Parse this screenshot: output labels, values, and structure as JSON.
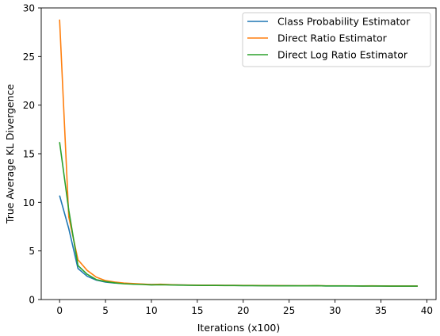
{
  "chart_data": {
    "type": "line",
    "title": "",
    "xlabel": "Iterations (x100)",
    "ylabel": "True Average KL Divergence",
    "xlim": [
      -2,
      41
    ],
    "ylim": [
      0,
      30
    ],
    "xticks": [
      0,
      5,
      10,
      15,
      20,
      25,
      30,
      35,
      40
    ],
    "yticks": [
      0,
      5,
      10,
      15,
      20,
      25,
      30
    ],
    "grid": false,
    "legend_position": "top-right",
    "x": [
      0,
      1,
      2,
      3,
      4,
      5,
      6,
      7,
      8,
      9,
      10,
      11,
      12,
      13,
      14,
      15,
      16,
      17,
      18,
      19,
      20,
      21,
      22,
      23,
      24,
      25,
      26,
      27,
      28,
      29,
      30,
      31,
      32,
      33,
      34,
      35,
      36,
      37,
      38,
      39
    ],
    "series": [
      {
        "name": "Class Probability Estimator",
        "color": "#1f77b4",
        "values": [
          10.7,
          7.3,
          3.2,
          2.4,
          2.0,
          1.8,
          1.7,
          1.65,
          1.6,
          1.58,
          1.55,
          1.55,
          1.52,
          1.5,
          1.48,
          1.47,
          1.46,
          1.46,
          1.45,
          1.45,
          1.44,
          1.44,
          1.43,
          1.42,
          1.42,
          1.42,
          1.41,
          1.41,
          1.42,
          1.4,
          1.4,
          1.4,
          1.4,
          1.39,
          1.4,
          1.39,
          1.38,
          1.38,
          1.38,
          1.38
        ]
      },
      {
        "name": "Direct Ratio Estimator",
        "color": "#ff7f0e",
        "values": [
          28.8,
          8.5,
          4.1,
          3.0,
          2.3,
          1.95,
          1.8,
          1.7,
          1.65,
          1.6,
          1.55,
          1.58,
          1.53,
          1.5,
          1.49,
          1.48,
          1.47,
          1.47,
          1.46,
          1.46,
          1.45,
          1.45,
          1.44,
          1.43,
          1.43,
          1.42,
          1.42,
          1.42,
          1.43,
          1.41,
          1.41,
          1.41,
          1.4,
          1.4,
          1.41,
          1.4,
          1.39,
          1.39,
          1.39,
          1.39
        ]
      },
      {
        "name": "Direct Log Ratio Estimator",
        "color": "#2ca02c",
        "values": [
          16.2,
          9.2,
          3.5,
          2.6,
          2.05,
          1.85,
          1.72,
          1.62,
          1.58,
          1.55,
          1.5,
          1.52,
          1.5,
          1.48,
          1.47,
          1.46,
          1.45,
          1.45,
          1.44,
          1.44,
          1.43,
          1.43,
          1.42,
          1.42,
          1.41,
          1.41,
          1.41,
          1.41,
          1.42,
          1.4,
          1.4,
          1.4,
          1.4,
          1.39,
          1.39,
          1.39,
          1.38,
          1.38,
          1.38,
          1.38
        ]
      }
    ]
  }
}
